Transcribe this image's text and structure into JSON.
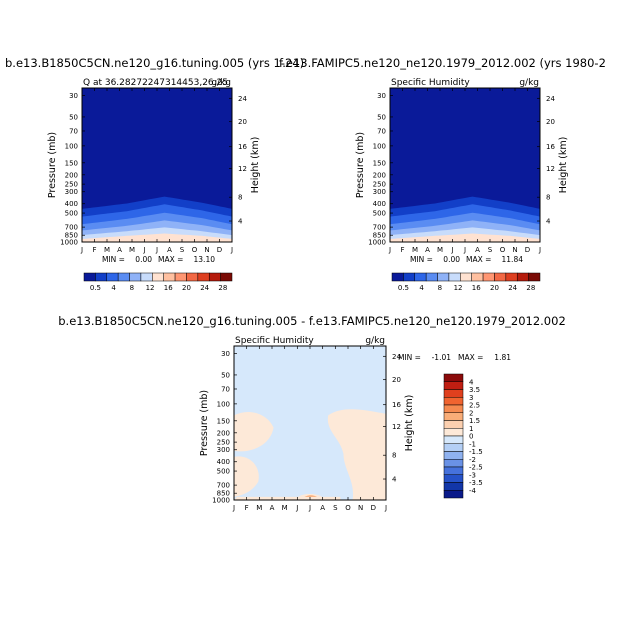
{
  "page": {
    "title_left": "b.e13.B1850C5CN.ne120_g16.tuning.005 (yrs 1-24)",
    "title_right": "f.e13.FAMIPC5.ne120_ne120.1979_2012.002 (yrs 1980-2",
    "title_diff": "b.e13.B1850C5CN.ne120_g16.tuning.005 - f.e13.FAMIPC5.ne120_ne120.1979_2012.002"
  },
  "chart_data": [
    {
      "type": "heatmap",
      "panel": "left",
      "subtitle_left": "Q at 36.28272247314453,26.25",
      "subtitle_right": "g/kg",
      "x_ticks": [
        "J",
        "F",
        "M",
        "A",
        "M",
        "J",
        "J",
        "A",
        "S",
        "O",
        "N",
        "D",
        "J"
      ],
      "ylabel": "Pressure (mb)",
      "y_ticks": [
        "30",
        "50",
        "70",
        "100",
        "150",
        "200",
        "250",
        "300",
        "400",
        "500",
        "700",
        "850",
        "1000"
      ],
      "ylabel_right": "Height (km)",
      "y_ticks_right": [
        "24",
        "20",
        "16",
        "12",
        "8",
        "4"
      ],
      "min_label": "MIN =",
      "min_value": "0.00",
      "max_label": "MAX =",
      "max_value": "13.10",
      "colorbar_ticks": [
        "0.5",
        "4",
        "8",
        "12",
        "16",
        "20",
        "24",
        "28"
      ],
      "colors": [
        "#0a1a99",
        "#123fc8",
        "#2e66e8",
        "#5a8cf2",
        "#8fb2f7",
        "#c8dcfb",
        "#ffe2d1",
        "#ffc0a0",
        "#ff9672",
        "#f26844",
        "#de3f20",
        "#b51b0c",
        "#7a0a05"
      ]
    },
    {
      "type": "heatmap",
      "panel": "right",
      "subtitle_left": "Specific Humidity",
      "subtitle_right": "g/kg",
      "x_ticks": [
        "J",
        "F",
        "M",
        "A",
        "M",
        "J",
        "J",
        "A",
        "S",
        "O",
        "N",
        "D",
        "J"
      ],
      "ylabel": "Pressure (mb)",
      "y_ticks": [
        "30",
        "50",
        "70",
        "100",
        "150",
        "200",
        "250",
        "300",
        "400",
        "500",
        "700",
        "850",
        "1000"
      ],
      "ylabel_right": "Height (km)",
      "y_ticks_right": [
        "24",
        "20",
        "16",
        "12",
        "8",
        "4"
      ],
      "min_label": "MIN =",
      "min_value": "0.00",
      "max_label": "MAX =",
      "max_value": "11.84",
      "colorbar_ticks": [
        "0.5",
        "4",
        "8",
        "12",
        "16",
        "20",
        "24",
        "28"
      ],
      "colors": [
        "#0a1a99",
        "#123fc8",
        "#2e66e8",
        "#5a8cf2",
        "#8fb2f7",
        "#c8dcfb",
        "#ffe2d1",
        "#ffc0a0",
        "#ff9672",
        "#f26844",
        "#de3f20",
        "#b51b0c",
        "#7a0a05"
      ]
    },
    {
      "type": "heatmap",
      "panel": "difference",
      "subtitle_left": "Specific Humidity",
      "subtitle_right": "g/kg",
      "x_ticks": [
        "J",
        "F",
        "M",
        "A",
        "M",
        "J",
        "J",
        "A",
        "S",
        "O",
        "N",
        "D",
        "J"
      ],
      "ylabel": "Pressure (mb)",
      "y_ticks": [
        "30",
        "50",
        "70",
        "100",
        "150",
        "200",
        "250",
        "300",
        "400",
        "500",
        "700",
        "850",
        "1000"
      ],
      "ylabel_right": "Height (km)",
      "y_ticks_right": [
        "24",
        "20",
        "16",
        "12",
        "8",
        "4"
      ],
      "min_label": "MIN =",
      "min_value": "-1.01",
      "max_label": "MAX =",
      "max_value": "1.81",
      "colorbar_ticks": [
        "4",
        "3.5",
        "3",
        "2.5",
        "2",
        "1.5",
        "1",
        "0",
        "-1",
        "-1.5",
        "-2",
        "-2.5",
        "-3",
        "-3.5",
        "-4"
      ],
      "colors": [
        "#8b0a0a",
        "#c01e12",
        "#e0401e",
        "#f06430",
        "#f58a50",
        "#f9ad78",
        "#fcd0b0",
        "#fde9d8",
        "#d6e8fb",
        "#b4cff5",
        "#8fb2f0",
        "#6a92e6",
        "#4672dc",
        "#2652c8",
        "#1236a8",
        "#0a1a8a"
      ]
    }
  ]
}
